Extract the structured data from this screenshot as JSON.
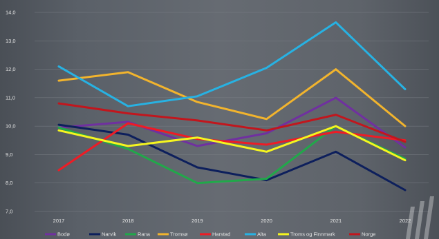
{
  "chart_data": {
    "type": "line",
    "title": "",
    "xlabel": "",
    "ylabel": "",
    "x": [
      "2017",
      "2018",
      "2019",
      "2020",
      "2021",
      "2022"
    ],
    "ylim": [
      7.0,
      14.0
    ],
    "yticks": [
      "7,0",
      "8,0",
      "9,0",
      "10,0",
      "11,0",
      "12,0",
      "13,0",
      "14,0"
    ],
    "grid": true,
    "legend_position": "bottom",
    "series": [
      {
        "name": "Bodø",
        "color": "#7030a0",
        "values": [
          9.95,
          10.15,
          9.3,
          9.75,
          11.0,
          9.25
        ]
      },
      {
        "name": "Narvik",
        "color": "#0d1f5c",
        "values": [
          10.05,
          9.7,
          8.55,
          8.1,
          9.1,
          7.75
        ]
      },
      {
        "name": "Rana",
        "color": "#21a84a",
        "values": [
          9.95,
          9.2,
          8.0,
          8.15,
          10.0,
          8.85
        ]
      },
      {
        "name": "Tromsø",
        "color": "#f2b42d",
        "values": [
          11.6,
          11.9,
          10.85,
          10.25,
          12.0,
          10.0
        ]
      },
      {
        "name": "Harstad",
        "color": "#ee1c25",
        "values": [
          8.45,
          10.1,
          9.55,
          9.35,
          9.8,
          9.5
        ]
      },
      {
        "name": "Alta",
        "color": "#27b2e3",
        "values": [
          12.1,
          10.7,
          11.05,
          12.05,
          13.65,
          11.3
        ]
      },
      {
        "name": "Troms og Finnmark",
        "color": "#f5f51f",
        "values": [
          9.85,
          9.3,
          9.6,
          9.1,
          10.0,
          8.8
        ]
      },
      {
        "name": "Norge",
        "color": "#c2161d",
        "values": [
          10.8,
          10.45,
          10.2,
          9.85,
          10.4,
          9.45
        ]
      }
    ]
  }
}
